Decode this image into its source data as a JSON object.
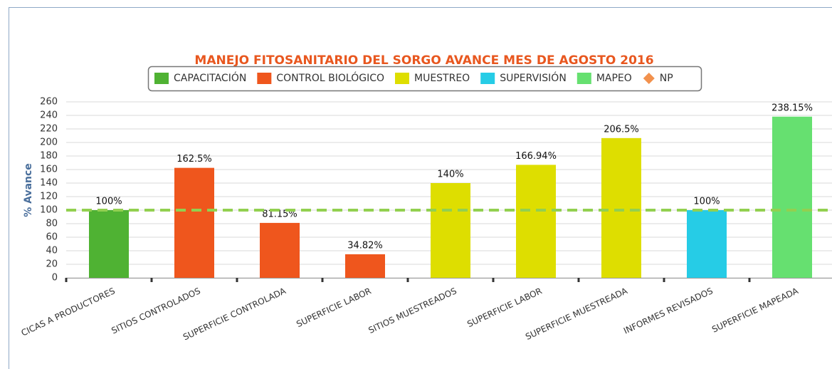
{
  "chart_data": {
    "type": "bar",
    "title": "MANEJO FITOSANITARIO DEL SORGO AVANCE MES DE AGOSTO 2016",
    "y_label": "% Avance",
    "categories": [
      "CICAS A PRODUCTORES",
      "SITIOS CONTROLADOS",
      "SUPERFICIE CONTROLADA",
      "SUPERFICIE LABOR",
      "SITIOS MUESTREADOS",
      "SUPERFICIE LABOR",
      "SUPERFICIE MUESTREADA",
      "INFORMES REVISADOS",
      "SUPERFICIE MAPEADA"
    ],
    "series": [
      {
        "name": "CAPACITACIÓN",
        "color": "#4fb233",
        "values": [
          100,
          null,
          null,
          null,
          null,
          null,
          null,
          null,
          null
        ],
        "value_labels": [
          "100%",
          null,
          null,
          null,
          null,
          null,
          null,
          null,
          null
        ]
      },
      {
        "name": "CONTROL BIOLÓGICO",
        "color": "#ef561d",
        "values": [
          null,
          162.5,
          81.15,
          34.82,
          null,
          null,
          null,
          null,
          null
        ],
        "value_labels": [
          null,
          "162.5%",
          "81.15%",
          "34.82%",
          null,
          null,
          null,
          null,
          null
        ]
      },
      {
        "name": "MUESTREO",
        "color": "#dede00",
        "values": [
          null,
          null,
          null,
          null,
          140,
          166.94,
          206.5,
          null,
          null
        ],
        "value_labels": [
          null,
          null,
          null,
          null,
          "140%",
          "166.94%",
          "206.5%",
          null,
          null
        ]
      },
      {
        "name": "SUPERVISIÓN",
        "color": "#26cce6",
        "values": [
          null,
          null,
          null,
          null,
          null,
          null,
          null,
          100,
          null
        ],
        "value_labels": [
          null,
          null,
          null,
          null,
          null,
          null,
          null,
          "100%",
          null
        ]
      },
      {
        "name": "MAPEO",
        "color": "#66e070",
        "values": [
          null,
          null,
          null,
          null,
          null,
          null,
          null,
          null,
          238.15
        ],
        "value_labels": [
          null,
          null,
          null,
          null,
          null,
          null,
          null,
          null,
          "238.15%"
        ]
      }
    ],
    "reference": {
      "name": "NP",
      "value": 100,
      "color": "#92d050",
      "marker_color": "#f2914d"
    },
    "ylim": [
      0,
      260
    ],
    "yticks": [
      0,
      20,
      40,
      60,
      80,
      100,
      120,
      140,
      160,
      180,
      200,
      220,
      240,
      260
    ],
    "grid": true
  }
}
